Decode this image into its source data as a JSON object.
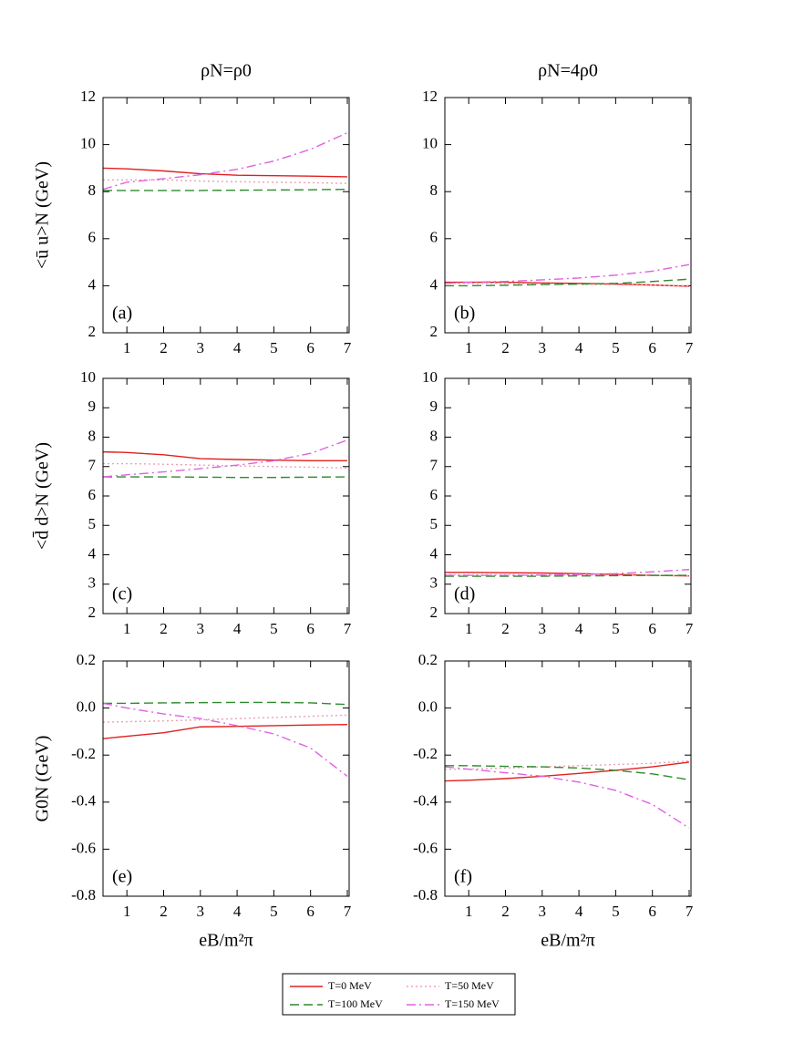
{
  "chart_data": [
    {
      "type": "line",
      "title": "ρN=ρ0",
      "ylabel": "<ū u>N (GeV)",
      "annotation": "(a)",
      "x": [
        0.35,
        1,
        2,
        3,
        4,
        5,
        6,
        7
      ],
      "xlim": [
        0.35,
        7.05
      ],
      "xticks": [
        1,
        2,
        3,
        4,
        5,
        6,
        7
      ],
      "ylim": [
        2,
        12
      ],
      "yticks": [
        2,
        4,
        6,
        8,
        10,
        12
      ],
      "series": [
        {
          "name": "T=0 MeV",
          "color": "#e02020",
          "dash": "solid",
          "values": [
            9.0,
            8.97,
            8.88,
            8.76,
            8.7,
            8.68,
            8.66,
            8.63
          ]
        },
        {
          "name": "T=50 MeV",
          "color": "#f0a0b0",
          "dash": "dotted",
          "values": [
            8.5,
            8.5,
            8.5,
            8.45,
            8.42,
            8.4,
            8.38,
            8.35
          ]
        },
        {
          "name": "T=100 MeV",
          "color": "#2e8b2e",
          "dash": "dashed",
          "values": [
            8.05,
            8.05,
            8.05,
            8.05,
            8.06,
            8.07,
            8.08,
            8.1
          ]
        },
        {
          "name": "T=150 MeV",
          "color": "#e060e0",
          "dash": "dashdot",
          "values": [
            8.1,
            8.4,
            8.55,
            8.72,
            8.95,
            9.3,
            9.8,
            10.5
          ]
        }
      ]
    },
    {
      "type": "line",
      "title": "ρN=4ρ0",
      "annotation": "(b)",
      "x": [
        0.35,
        1,
        2,
        3,
        4,
        5,
        6,
        7
      ],
      "xlim": [
        0.35,
        7.05
      ],
      "xticks": [
        1,
        2,
        3,
        4,
        5,
        6,
        7
      ],
      "ylim": [
        2,
        12
      ],
      "yticks": [
        2,
        4,
        6,
        8,
        10,
        12
      ],
      "series": [
        {
          "color": "#e02020",
          "dash": "solid",
          "values": [
            4.15,
            4.15,
            4.15,
            4.12,
            4.1,
            4.07,
            4.03,
            3.98
          ]
        },
        {
          "color": "#f0a0b0",
          "dash": "dotted",
          "values": [
            4.1,
            4.1,
            4.1,
            4.08,
            4.06,
            4.04,
            4.02,
            4.0
          ]
        },
        {
          "color": "#2e8b2e",
          "dash": "dashed",
          "values": [
            4.0,
            4.0,
            4.02,
            4.05,
            4.07,
            4.1,
            4.18,
            4.28
          ]
        },
        {
          "color": "#e060e0",
          "dash": "dashdot",
          "values": [
            4.1,
            4.15,
            4.18,
            4.25,
            4.33,
            4.45,
            4.62,
            4.9
          ]
        }
      ]
    },
    {
      "type": "line",
      "ylabel": "<d̄ d>N (GeV)",
      "annotation": "(c)",
      "x": [
        0.35,
        1,
        2,
        3,
        4,
        5,
        6,
        7
      ],
      "xlim": [
        0.35,
        7.05
      ],
      "xticks": [
        1,
        2,
        3,
        4,
        5,
        6,
        7
      ],
      "ylim": [
        2,
        10
      ],
      "yticks": [
        2,
        3,
        4,
        5,
        6,
        7,
        8,
        9,
        10
      ],
      "series": [
        {
          "color": "#e02020",
          "dash": "solid",
          "values": [
            7.5,
            7.48,
            7.4,
            7.27,
            7.24,
            7.22,
            7.2,
            7.2
          ]
        },
        {
          "color": "#f0a0b0",
          "dash": "dotted",
          "values": [
            7.1,
            7.1,
            7.08,
            7.05,
            7.02,
            7.0,
            6.98,
            6.95
          ]
        },
        {
          "color": "#2e8b2e",
          "dash": "dashed",
          "values": [
            6.65,
            6.65,
            6.65,
            6.64,
            6.63,
            6.63,
            6.64,
            6.65
          ]
        },
        {
          "color": "#e060e0",
          "dash": "dashdot",
          "values": [
            6.65,
            6.72,
            6.82,
            6.93,
            7.05,
            7.2,
            7.45,
            7.9
          ]
        }
      ]
    },
    {
      "type": "line",
      "annotation": "(d)",
      "x": [
        0.35,
        1,
        2,
        3,
        4,
        5,
        6,
        7
      ],
      "xlim": [
        0.35,
        7.05
      ],
      "xticks": [
        1,
        2,
        3,
        4,
        5,
        6,
        7
      ],
      "ylim": [
        2,
        10
      ],
      "yticks": [
        2,
        3,
        4,
        5,
        6,
        7,
        8,
        9,
        10
      ],
      "series": [
        {
          "color": "#e02020",
          "dash": "solid",
          "values": [
            3.4,
            3.4,
            3.39,
            3.38,
            3.36,
            3.33,
            3.3,
            3.28
          ]
        },
        {
          "color": "#f0a0b0",
          "dash": "dotted",
          "values": [
            3.32,
            3.32,
            3.32,
            3.31,
            3.31,
            3.3,
            3.3,
            3.29
          ]
        },
        {
          "color": "#2e8b2e",
          "dash": "dashed",
          "values": [
            3.27,
            3.27,
            3.27,
            3.27,
            3.28,
            3.29,
            3.3,
            3.3
          ]
        },
        {
          "color": "#e060e0",
          "dash": "dashdot",
          "values": [
            3.3,
            3.3,
            3.3,
            3.31,
            3.33,
            3.36,
            3.42,
            3.5
          ]
        }
      ]
    },
    {
      "type": "line",
      "ylabel": "G0N (GeV)",
      "xlabel": "eB/m²π",
      "annotation": "(e)",
      "x": [
        0.35,
        1,
        2,
        3,
        4,
        5,
        6,
        7
      ],
      "xlim": [
        0.35,
        7.05
      ],
      "xticks": [
        1,
        2,
        3,
        4,
        5,
        6,
        7
      ],
      "ylim": [
        -0.8,
        0.2
      ],
      "yticks": [
        -0.8,
        -0.6,
        -0.4,
        -0.2,
        {
          "value": 0,
          "label": "0.0"
        },
        0.2
      ],
      "series": [
        {
          "color": "#e02020",
          "dash": "solid",
          "values": [
            -0.13,
            -0.12,
            -0.105,
            -0.08,
            -0.078,
            -0.075,
            -0.072,
            -0.07
          ]
        },
        {
          "color": "#f0a0b0",
          "dash": "dotted",
          "values": [
            -0.06,
            -0.058,
            -0.055,
            -0.05,
            -0.045,
            -0.04,
            -0.035,
            -0.03
          ]
        },
        {
          "color": "#2e8b2e",
          "dash": "dashed",
          "values": [
            0.02,
            0.02,
            0.022,
            0.023,
            0.024,
            0.024,
            0.022,
            0.015
          ]
        },
        {
          "color": "#e060e0",
          "dash": "dashdot",
          "values": [
            0.02,
            0.0,
            -0.025,
            -0.045,
            -0.075,
            -0.11,
            -0.17,
            -0.29
          ]
        }
      ]
    },
    {
      "type": "line",
      "xlabel": "eB/m²π",
      "annotation": "(f)",
      "x": [
        0.35,
        1,
        2,
        3,
        4,
        5,
        6,
        7
      ],
      "xlim": [
        0.35,
        7.05
      ],
      "xticks": [
        1,
        2,
        3,
        4,
        5,
        6,
        7
      ],
      "ylim": [
        -0.8,
        0.2
      ],
      "yticks": [
        -0.8,
        -0.6,
        -0.4,
        -0.2,
        {
          "value": 0,
          "label": "0.0"
        },
        0.2
      ],
      "series": [
        {
          "color": "#e02020",
          "dash": "solid",
          "values": [
            -0.31,
            -0.307,
            -0.3,
            -0.29,
            -0.278,
            -0.265,
            -0.25,
            -0.23
          ]
        },
        {
          "color": "#f0a0b0",
          "dash": "dotted",
          "values": [
            -0.26,
            -0.26,
            -0.255,
            -0.25,
            -0.245,
            -0.24,
            -0.235,
            -0.225
          ]
        },
        {
          "color": "#2e8b2e",
          "dash": "dashed",
          "values": [
            -0.245,
            -0.245,
            -0.248,
            -0.25,
            -0.255,
            -0.265,
            -0.28,
            -0.305
          ]
        },
        {
          "color": "#e060e0",
          "dash": "dashdot",
          "values": [
            -0.25,
            -0.26,
            -0.275,
            -0.29,
            -0.315,
            -0.35,
            -0.41,
            -0.51
          ]
        }
      ]
    }
  ]
}
